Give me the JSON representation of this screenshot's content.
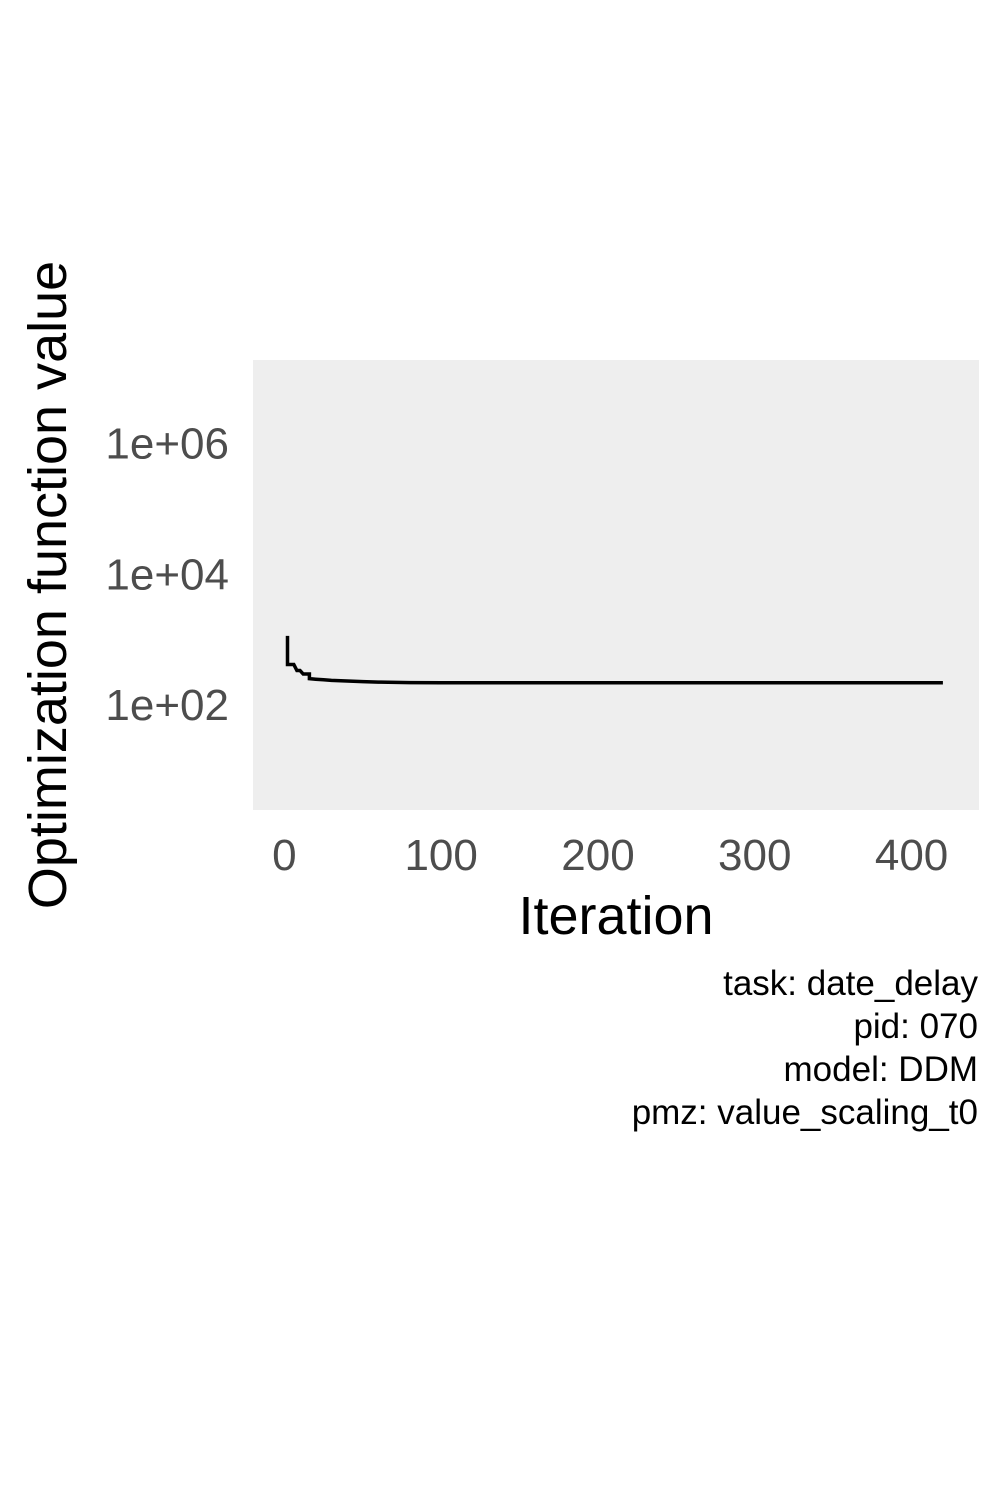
{
  "chart_data": {
    "type": "line",
    "xlabel": "Iteration",
    "ylabel": "Optimization function value",
    "x_ticks": [
      0,
      100,
      200,
      300,
      400
    ],
    "x_tick_labels": [
      "0",
      "100",
      "200",
      "300",
      "400"
    ],
    "xlim": [
      -20,
      443
    ],
    "y_scale": "log10",
    "y_ticks": [
      100,
      10000,
      1000000
    ],
    "y_tick_labels": [
      "1e+02",
      "1e+04",
      "1e+06"
    ],
    "ylim": [
      2.5,
      19000000
    ],
    "grid": false,
    "background": "#eeeeee",
    "line_color": "#000000",
    "series": [
      {
        "x": [
          2,
          2,
          3,
          6,
          8,
          8,
          10,
          12,
          16,
          16,
          20,
          25,
          30,
          40,
          50,
          60,
          80,
          100,
          150,
          200,
          250,
          300,
          350,
          420
        ],
        "y": [
          1150,
          420,
          420,
          420,
          340,
          340,
          340,
          300,
          300,
          255,
          250,
          245,
          240,
          235,
          230,
          226,
          222,
          220,
          220,
          220,
          220,
          220,
          220,
          220
        ]
      }
    ]
  },
  "caption": {
    "lines": [
      "task: date_delay",
      "pid: 070",
      "model: DDM",
      "pmz: value_scaling_t0"
    ]
  }
}
